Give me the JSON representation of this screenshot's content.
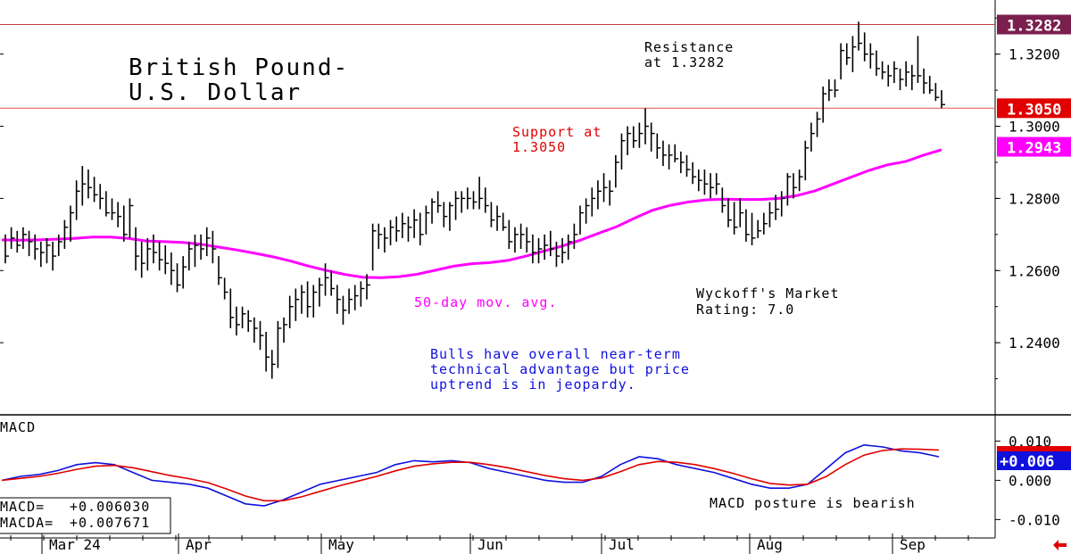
{
  "colors": {
    "price_bar": "#000000",
    "ma_line": "#ff00ff",
    "support_line": "#e05050",
    "resistance_line": "#c04040",
    "resistance_tag": "#7a1f4e",
    "support_tag": "#e00000",
    "ma_tag": "#ff00ff",
    "macd_line": "#1010dd",
    "macda_line": "#e00000",
    "annotation_red": "#e00000",
    "annotation_blue": "#1010dd",
    "annotation_magenta": "#ff00ff"
  },
  "chart_data": [
    {
      "type": "ohlc",
      "title": "British Pound-U.S. Dollar",
      "title_lines": [
        "British Pound-",
        "U.S. Dollar"
      ],
      "ylim": [
        1.22,
        1.335
      ],
      "yticks": [
        "1.2400",
        "1.2600",
        "1.2800",
        "1.3000",
        "1.3200"
      ],
      "ytick_values": [
        1.24,
        1.26,
        1.28,
        1.3,
        1.32
      ],
      "months": [
        "Mar 24",
        "Apr",
        "May",
        "Jun",
        "Jul",
        "Aug",
        "Sep"
      ],
      "bars": [
        [
          1.262,
          1.27,
          1.264
        ],
        [
          1.266,
          1.272,
          1.269
        ],
        [
          1.265,
          1.271,
          1.267
        ],
        [
          1.266,
          1.272,
          1.27
        ],
        [
          1.264,
          1.271,
          1.268
        ],
        [
          1.263,
          1.27,
          1.266
        ],
        [
          1.261,
          1.268,
          1.265
        ],
        [
          1.262,
          1.269,
          1.267
        ],
        [
          1.26,
          1.268,
          1.264
        ],
        [
          1.264,
          1.27,
          1.268
        ],
        [
          1.266,
          1.274,
          1.272
        ],
        [
          1.268,
          1.278,
          1.276
        ],
        [
          1.274,
          1.285,
          1.282
        ],
        [
          1.278,
          1.289,
          1.284
        ],
        [
          1.28,
          1.288,
          1.283
        ],
        [
          1.279,
          1.286,
          1.281
        ],
        [
          1.277,
          1.284,
          1.28
        ],
        [
          1.275,
          1.282,
          1.276
        ],
        [
          1.274,
          1.28,
          1.276
        ],
        [
          1.272,
          1.279,
          1.275
        ],
        [
          1.268,
          1.278,
          1.27
        ],
        [
          1.269,
          1.28,
          1.278
        ],
        [
          1.26,
          1.272,
          1.264
        ],
        [
          1.258,
          1.268,
          1.262
        ],
        [
          1.26,
          1.269,
          1.266
        ],
        [
          1.262,
          1.27,
          1.265
        ],
        [
          1.26,
          1.268,
          1.263
        ],
        [
          1.259,
          1.267,
          1.262
        ],
        [
          1.256,
          1.265,
          1.26
        ],
        [
          1.254,
          1.262,
          1.256
        ],
        [
          1.255,
          1.264,
          1.261
        ],
        [
          1.26,
          1.268,
          1.266
        ],
        [
          1.261,
          1.27,
          1.267
        ],
        [
          1.263,
          1.27,
          1.266
        ],
        [
          1.264,
          1.272,
          1.269
        ],
        [
          1.262,
          1.271,
          1.266
        ],
        [
          1.256,
          1.264,
          1.258
        ],
        [
          1.252,
          1.258,
          1.254
        ],
        [
          1.244,
          1.255,
          1.247
        ],
        [
          1.242,
          1.25,
          1.245
        ],
        [
          1.244,
          1.25,
          1.248
        ],
        [
          1.243,
          1.249,
          1.246
        ],
        [
          1.24,
          1.247,
          1.244
        ],
        [
          1.238,
          1.246,
          1.242
        ],
        [
          1.232,
          1.243,
          1.236
        ],
        [
          1.23,
          1.238,
          1.234
        ],
        [
          1.233,
          1.246,
          1.244
        ],
        [
          1.24,
          1.247,
          1.245
        ],
        [
          1.244,
          1.253,
          1.25
        ],
        [
          1.246,
          1.255,
          1.252
        ],
        [
          1.248,
          1.256,
          1.254
        ],
        [
          1.247,
          1.257,
          1.25
        ],
        [
          1.247,
          1.256,
          1.254
        ],
        [
          1.25,
          1.258,
          1.256
        ],
        [
          1.253,
          1.262,
          1.258
        ],
        [
          1.253,
          1.26,
          1.255
        ],
        [
          1.248,
          1.256,
          1.252
        ],
        [
          1.245,
          1.253,
          1.249
        ],
        [
          1.248,
          1.255,
          1.252
        ],
        [
          1.249,
          1.256,
          1.253
        ],
        [
          1.25,
          1.257,
          1.255
        ],
        [
          1.252,
          1.259,
          1.256
        ],
        [
          1.26,
          1.273,
          1.271
        ],
        [
          1.266,
          1.273,
          1.27
        ],
        [
          1.265,
          1.272,
          1.269
        ],
        [
          1.267,
          1.274,
          1.272
        ],
        [
          1.268,
          1.275,
          1.271
        ],
        [
          1.269,
          1.276,
          1.273
        ],
        [
          1.268,
          1.275,
          1.272
        ],
        [
          1.269,
          1.277,
          1.274
        ],
        [
          1.267,
          1.276,
          1.27
        ],
        [
          1.27,
          1.278,
          1.276
        ],
        [
          1.273,
          1.28,
          1.279
        ],
        [
          1.276,
          1.282,
          1.278
        ],
        [
          1.272,
          1.279,
          1.275
        ],
        [
          1.271,
          1.279,
          1.278
        ],
        [
          1.274,
          1.282,
          1.28
        ],
        [
          1.276,
          1.282,
          1.28
        ],
        [
          1.277,
          1.283,
          1.28
        ],
        [
          1.277,
          1.282,
          1.279
        ],
        [
          1.277,
          1.286,
          1.28
        ],
        [
          1.276,
          1.283,
          1.278
        ],
        [
          1.272,
          1.279,
          1.274
        ],
        [
          1.271,
          1.278,
          1.275
        ],
        [
          1.271,
          1.276,
          1.272
        ],
        [
          1.266,
          1.274,
          1.268
        ],
        [
          1.265,
          1.272,
          1.27
        ],
        [
          1.266,
          1.273,
          1.27
        ],
        [
          1.265,
          1.272,
          1.268
        ],
        [
          1.262,
          1.27,
          1.265
        ],
        [
          1.262,
          1.269,
          1.266
        ],
        [
          1.263,
          1.27,
          1.267
        ],
        [
          1.264,
          1.271,
          1.266
        ],
        [
          1.261,
          1.268,
          1.264
        ],
        [
          1.262,
          1.269,
          1.265
        ],
        [
          1.263,
          1.27,
          1.268
        ],
        [
          1.266,
          1.273,
          1.27
        ],
        [
          1.27,
          1.278,
          1.276
        ],
        [
          1.273,
          1.28,
          1.278
        ],
        [
          1.275,
          1.283,
          1.28
        ],
        [
          1.277,
          1.285,
          1.282
        ],
        [
          1.279,
          1.287,
          1.283
        ],
        [
          1.278,
          1.285,
          1.282
        ],
        [
          1.283,
          1.292,
          1.29
        ],
        [
          1.288,
          1.298,
          1.296
        ],
        [
          1.292,
          1.3,
          1.298
        ],
        [
          1.294,
          1.3,
          1.296
        ],
        [
          1.294,
          1.301,
          1.298
        ],
        [
          1.295,
          1.305,
          1.3
        ],
        [
          1.293,
          1.301,
          1.298
        ],
        [
          1.291,
          1.298,
          1.294
        ],
        [
          1.289,
          1.296,
          1.292
        ],
        [
          1.288,
          1.295,
          1.292
        ],
        [
          1.29,
          1.295,
          1.291
        ],
        [
          1.287,
          1.293,
          1.29
        ],
        [
          1.286,
          1.292,
          1.288
        ],
        [
          1.284,
          1.29,
          1.286
        ],
        [
          1.282,
          1.288,
          1.285
        ],
        [
          1.281,
          1.288,
          1.284
        ],
        [
          1.28,
          1.287,
          1.283
        ],
        [
          1.281,
          1.287,
          1.284
        ],
        [
          1.276,
          1.283,
          1.278
        ],
        [
          1.272,
          1.28,
          1.274
        ],
        [
          1.27,
          1.279,
          1.272
        ],
        [
          1.272,
          1.28,
          1.276
        ],
        [
          1.268,
          1.277,
          1.27
        ],
        [
          1.267,
          1.276,
          1.269
        ],
        [
          1.269,
          1.274,
          1.271
        ],
        [
          1.27,
          1.276,
          1.273
        ],
        [
          1.272,
          1.279,
          1.276
        ],
        [
          1.274,
          1.281,
          1.277
        ],
        [
          1.275,
          1.282,
          1.28
        ],
        [
          1.278,
          1.287,
          1.286
        ],
        [
          1.28,
          1.287,
          1.283
        ],
        [
          1.282,
          1.288,
          1.286
        ],
        [
          1.285,
          1.296,
          1.294
        ],
        [
          1.293,
          1.301,
          1.298
        ],
        [
          1.297,
          1.304,
          1.302
        ],
        [
          1.301,
          1.311,
          1.309
        ],
        [
          1.307,
          1.313,
          1.31
        ],
        [
          1.308,
          1.313,
          1.31
        ],
        [
          1.313,
          1.323,
          1.321
        ],
        [
          1.317,
          1.323,
          1.319
        ],
        [
          1.315,
          1.325,
          1.322
        ],
        [
          1.321,
          1.329,
          1.323
        ],
        [
          1.318,
          1.326,
          1.32
        ],
        [
          1.316,
          1.323,
          1.32
        ],
        [
          1.314,
          1.321,
          1.316
        ],
        [
          1.313,
          1.318,
          1.315
        ],
        [
          1.311,
          1.317,
          1.314
        ],
        [
          1.312,
          1.318,
          1.316
        ],
        [
          1.31,
          1.316,
          1.313
        ],
        [
          1.311,
          1.318,
          1.315
        ],
        [
          1.31,
          1.317,
          1.314
        ],
        [
          1.312,
          1.325,
          1.314
        ],
        [
          1.309,
          1.316,
          1.312
        ],
        [
          1.309,
          1.314,
          1.31
        ],
        [
          1.307,
          1.312,
          1.308
        ],
        [
          1.305,
          1.31,
          1.306
        ]
      ],
      "ma_50": [
        1.2685,
        1.2684,
        1.2685,
        1.2687,
        1.2689,
        1.2693,
        1.2693,
        1.2689,
        1.2682,
        1.268,
        1.2678,
        1.2673,
        1.2665,
        1.2657,
        1.2648,
        1.2638,
        1.2626,
        1.2612,
        1.26,
        1.2589,
        1.2581,
        1.258,
        1.2583,
        1.259,
        1.2601,
        1.2612,
        1.2619,
        1.2622,
        1.2628,
        1.264,
        1.2654,
        1.2668,
        1.2684,
        1.2703,
        1.2721,
        1.2745,
        1.2767,
        1.2781,
        1.279,
        1.2796,
        1.2798,
        1.2797,
        1.2797,
        1.28,
        1.2808,
        1.2821,
        1.284,
        1.2859,
        1.2878,
        1.2893,
        1.2902,
        1.292,
        1.2935
      ],
      "support": {
        "value": 1.305,
        "tag": "1.3050",
        "label_lines": [
          "Support at",
          "1.3050"
        ]
      },
      "resistance": {
        "value": 1.3282,
        "tag": "1.3282",
        "label_lines": [
          "Resistance",
          "at 1.3282"
        ]
      },
      "ma_tag": {
        "value": 1.2943,
        "tag": "1.2943"
      },
      "annotations": {
        "ma_label": "50-day mov. avg.",
        "wyckoff": [
          "Wyckoff's Market",
          "Rating: 7.0"
        ],
        "comment": [
          "Bulls have overall near-term",
          "technical advantage but price",
          "uptrend is in jeopardy."
        ]
      }
    },
    {
      "type": "line",
      "title": "MACD",
      "ylim": [
        -0.014,
        0.016
      ],
      "yticks": [
        "0.010",
        "0.000",
        "-0.010"
      ],
      "ytick_values": [
        0.01,
        0.0,
        -0.01
      ],
      "series": [
        {
          "name": "MACD",
          "values": [
            0.0,
            0.001,
            0.0015,
            0.0025,
            0.004,
            0.0045,
            0.004,
            0.002,
            0.0,
            -0.0005,
            -0.001,
            -0.002,
            -0.004,
            -0.006,
            -0.0065,
            -0.005,
            -0.003,
            -0.001,
            0.0,
            0.001,
            0.002,
            0.004,
            0.005,
            0.0047,
            0.005,
            0.0045,
            0.003,
            0.002,
            0.001,
            0.0,
            -0.0005,
            -0.0005,
            0.001,
            0.004,
            0.006,
            0.0055,
            0.004,
            0.003,
            0.002,
            0.0005,
            -0.001,
            -0.002,
            -0.002,
            -0.001,
            0.003,
            0.007,
            0.009,
            0.0085,
            0.0075,
            0.007,
            0.006
          ]
        },
        {
          "name": "MACDA",
          "values": [
            0.0,
            0.0005,
            0.001,
            0.0018,
            0.0028,
            0.0036,
            0.0038,
            0.0032,
            0.0022,
            0.0012,
            0.0004,
            -0.0006,
            -0.0022,
            -0.004,
            -0.0052,
            -0.0052,
            -0.0042,
            -0.0028,
            -0.0014,
            -0.0002,
            0.001,
            0.0024,
            0.0036,
            0.0042,
            0.0046,
            0.0046,
            0.004,
            0.0032,
            0.0022,
            0.0012,
            0.0004,
            0.0,
            0.0006,
            0.0022,
            0.004,
            0.0048,
            0.0046,
            0.004,
            0.003,
            0.0018,
            0.0004,
            -0.0008,
            -0.0012,
            -0.001,
            0.001,
            0.004,
            0.0064,
            0.0076,
            0.008,
            0.0079,
            0.0077
          ]
        }
      ],
      "tag_macd": "+0.006",
      "readout": [
        {
          "label": "MACD=",
          "value": "+0.006030"
        },
        {
          "label": "MACDA=",
          "value": "+0.007671"
        }
      ],
      "annotation": "MACD posture is bearish"
    }
  ]
}
